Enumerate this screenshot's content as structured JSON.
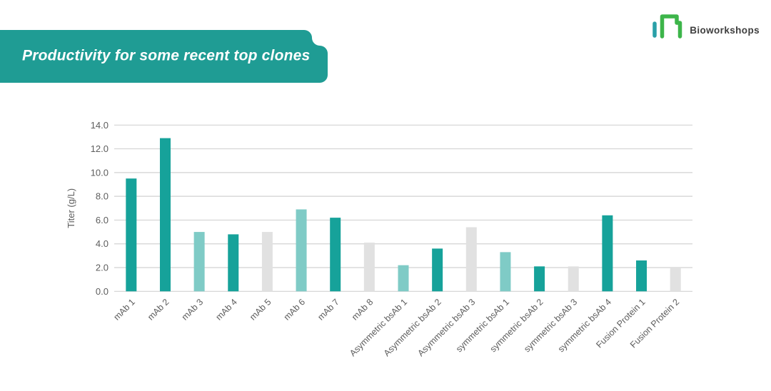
{
  "header": {
    "title": "Productivity for some recent top clones"
  },
  "logo": {
    "text": "Bioworkshops"
  },
  "colors": {
    "banner": "#1f9c94",
    "bar_dark": "#16a29a",
    "bar_light": "#7fcbc6",
    "bar_gray": "#e1e1e1",
    "gridline": "#d2d2d2",
    "axis_text": "#5d5d5d",
    "logo_teal": "#2aa0a8",
    "logo_green": "#3db54a"
  },
  "chart_data": {
    "type": "bar",
    "title": "",
    "xlabel": "",
    "ylabel": "Titer (g/L)",
    "ylim": [
      0,
      14
    ],
    "yticks": [
      0,
      2,
      4,
      6,
      8,
      10,
      12,
      14
    ],
    "grid": true,
    "legend": false,
    "categories": [
      "mAb 1",
      "mAb 2",
      "mAb 3",
      "mAb 4",
      "mAb 5",
      "mAb 6",
      "mAb 7",
      "mAb 8",
      "Asymmetric bsAb 1",
      "Asymmetric bsAb 2",
      "Asymmetric bsAb 3",
      "symmetric bsAb 1",
      "symmetric bsAb 2",
      "symmetric bsAb 3",
      "symmetric bsAb 4",
      "Fusion Protein 1",
      "Fusion Protein 2"
    ],
    "values": [
      9.5,
      12.9,
      5.0,
      4.8,
      5.0,
      6.9,
      6.2,
      4.1,
      2.2,
      3.6,
      5.4,
      3.3,
      2.1,
      2.1,
      6.4,
      2.6,
      2.0
    ],
    "bar_colors": [
      "dark",
      "dark",
      "light",
      "dark",
      "gray",
      "light",
      "dark",
      "gray",
      "light",
      "dark",
      "gray",
      "light",
      "dark",
      "gray",
      "dark",
      "dark",
      "gray"
    ]
  }
}
